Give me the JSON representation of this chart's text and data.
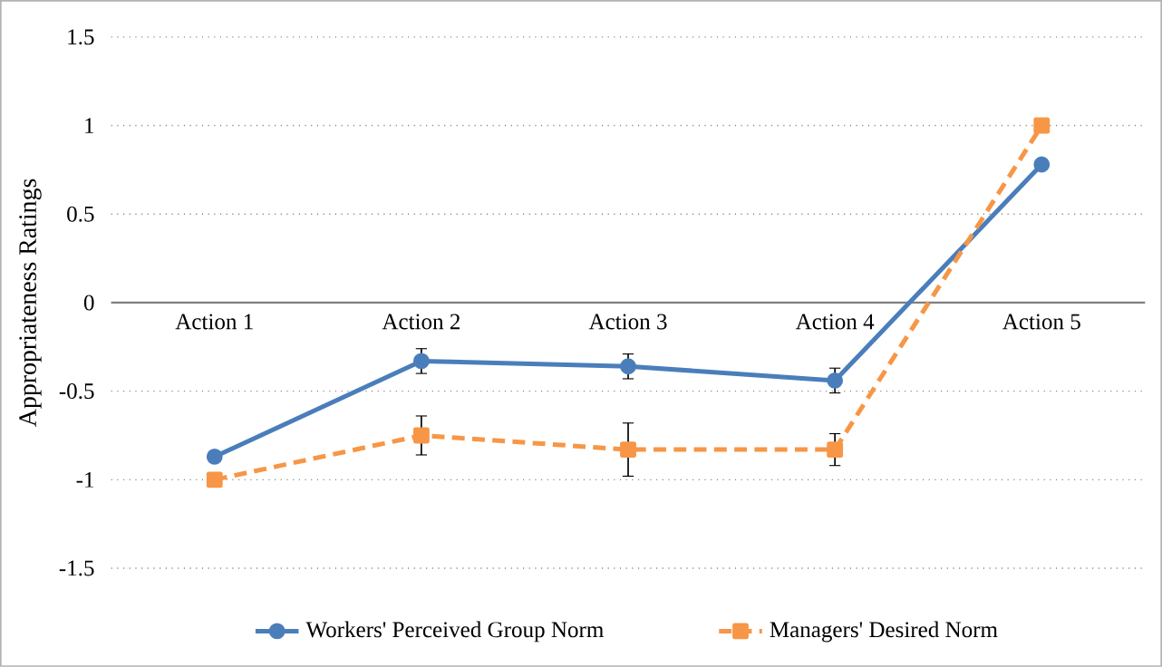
{
  "chart_data": {
    "type": "line",
    "ylabel": "Appropriateness Ratings",
    "categories": [
      "Action 1",
      "Action 2",
      "Action 3",
      "Action 4",
      "Action 5"
    ],
    "series": [
      {
        "name": "Workers' Perceived Group Norm",
        "color": "#4a7ebb",
        "values": [
          -0.87,
          -0.33,
          -0.36,
          -0.44,
          0.78
        ],
        "errors": [
          null,
          0.07,
          0.07,
          0.07,
          null
        ],
        "marker": "circle",
        "line_style": "solid"
      },
      {
        "name": "Managers' Desired Norm",
        "color": "#f79646",
        "values": [
          -1,
          -0.75,
          -0.83,
          -0.83,
          1
        ],
        "errors": [
          null,
          0.11,
          0.15,
          0.09,
          null
        ],
        "marker": "square",
        "line_style": "dashed"
      }
    ],
    "ylim": [
      -1.5,
      1.5
    ],
    "yticks": [
      -1.5,
      -1,
      -0.5,
      0,
      0.5,
      1,
      1.5
    ],
    "grid": "y",
    "legend": "bottom"
  }
}
